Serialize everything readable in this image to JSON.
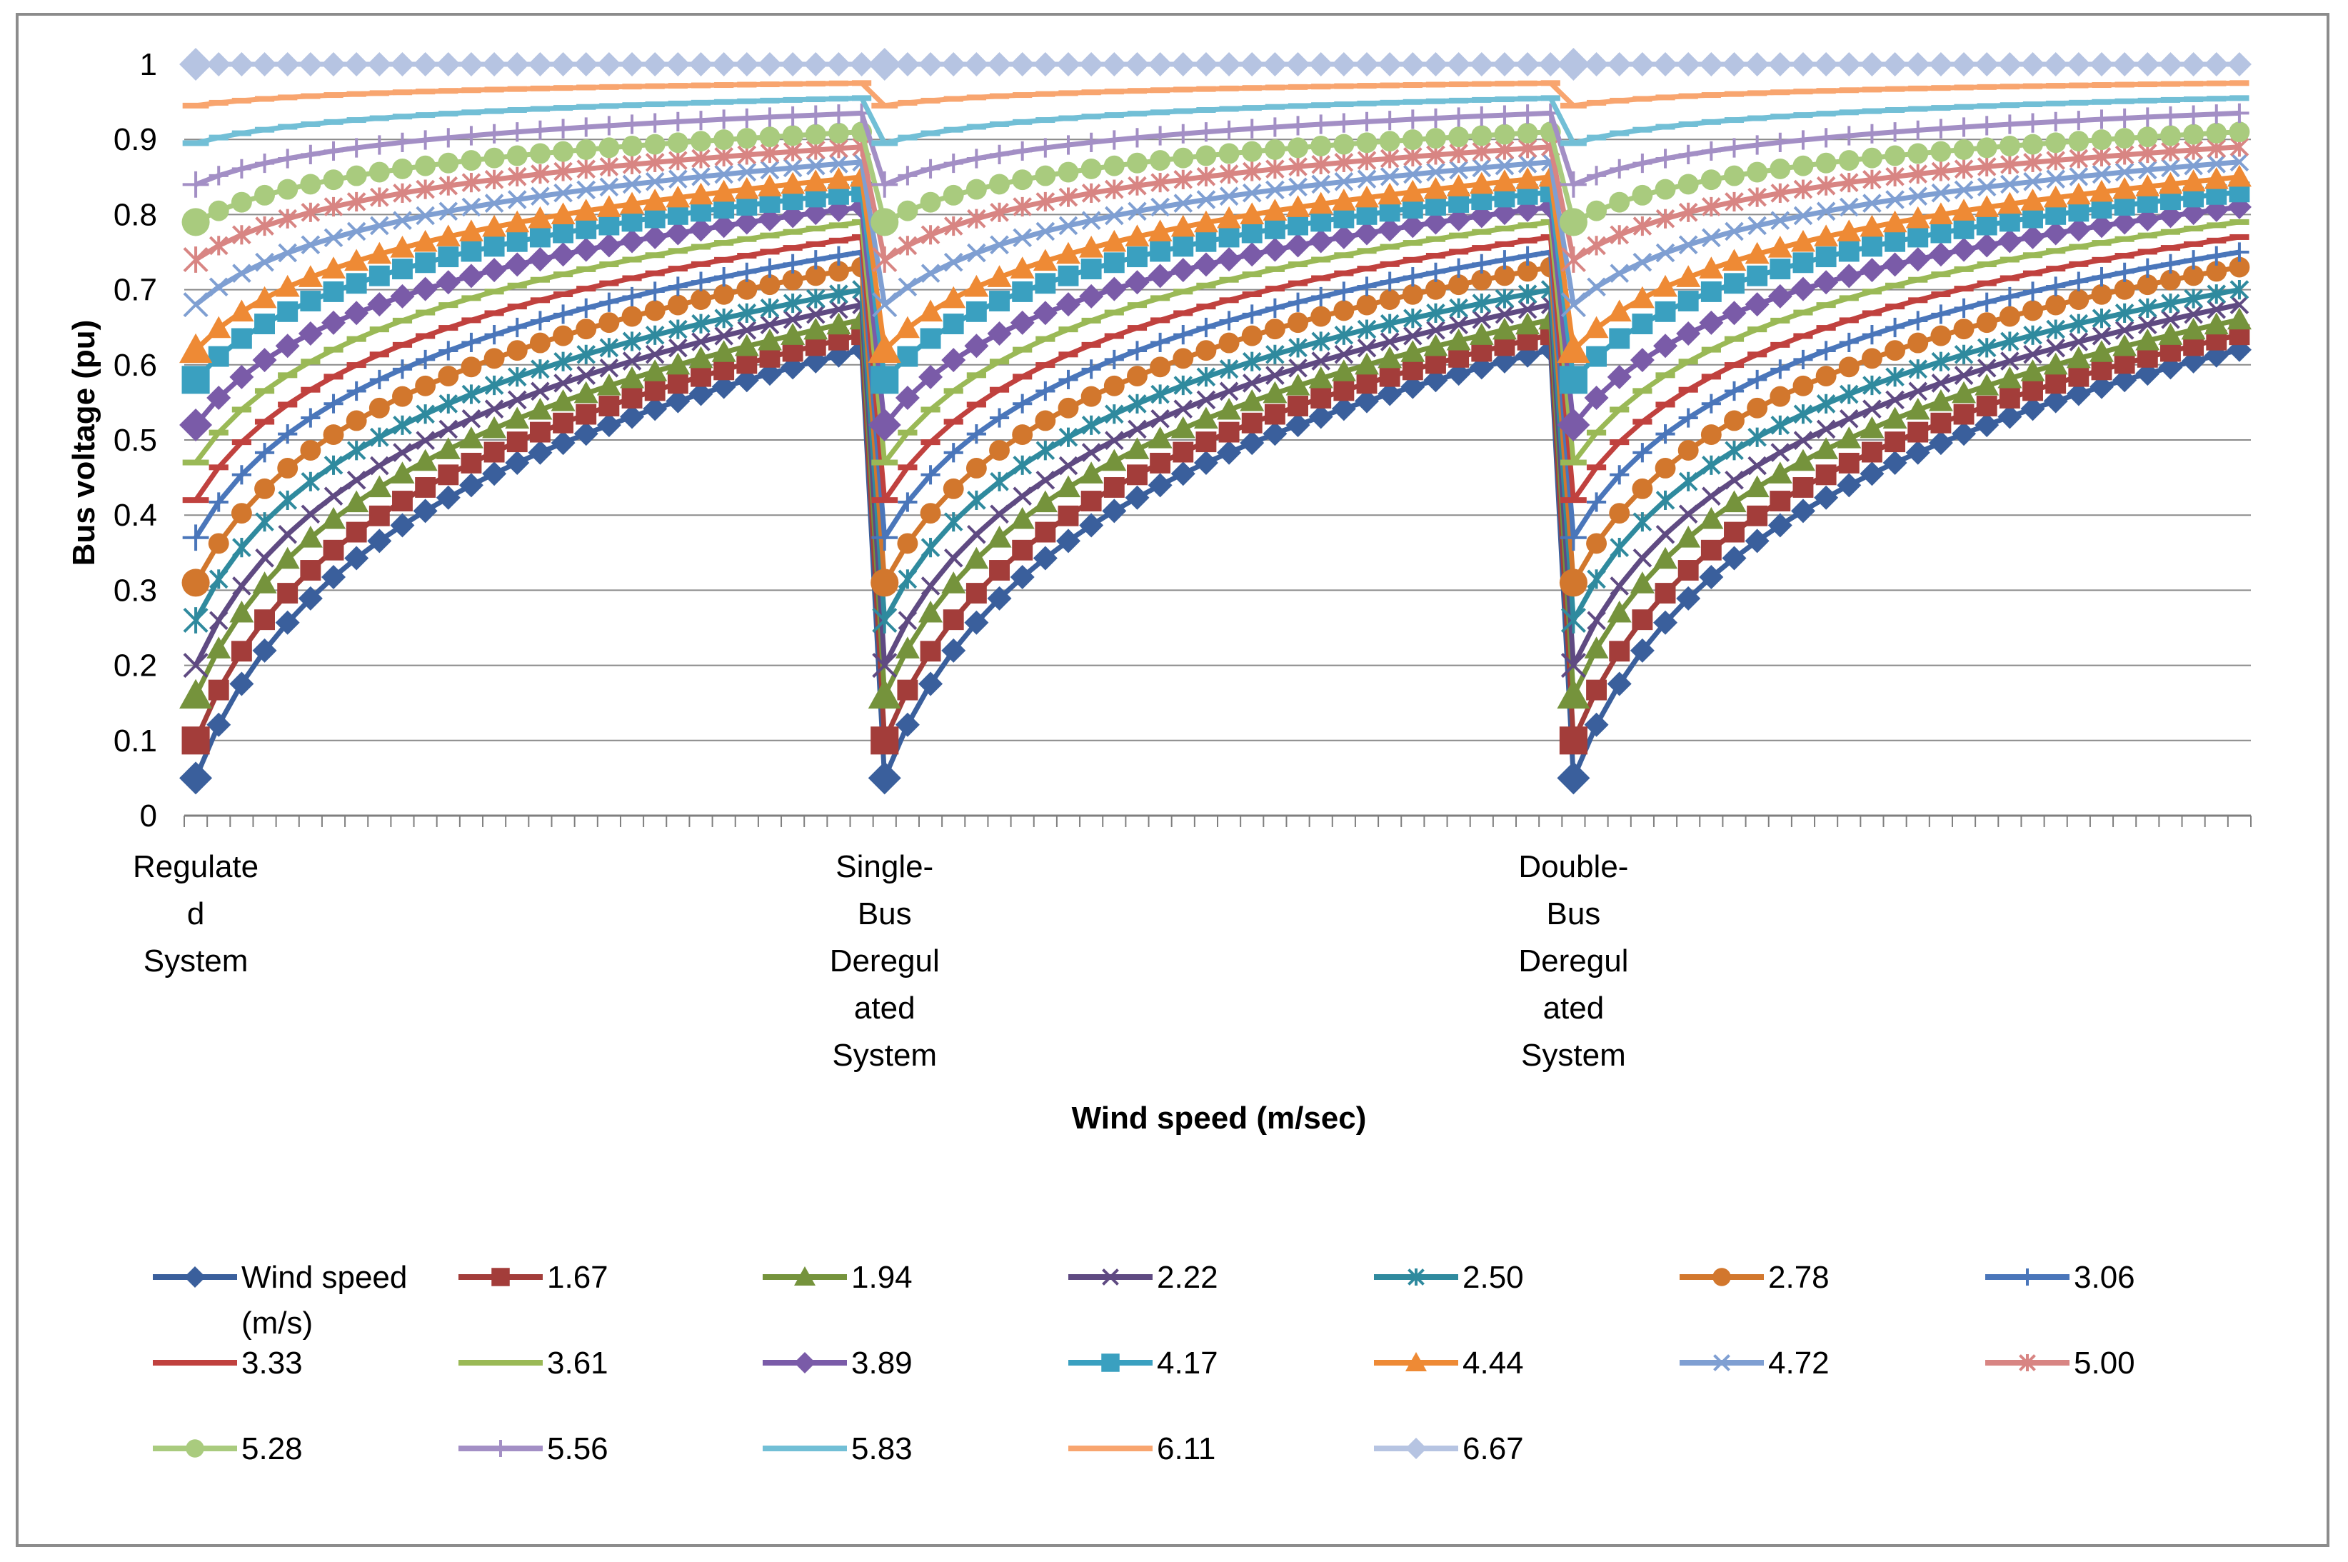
{
  "chart_data": {
    "type": "line",
    "title": "",
    "ylabel": "Bus voltage (pu)",
    "xlabel": "Wind speed (m/sec)",
    "ylim": [
      0,
      1
    ],
    "yticks": [
      "0",
      "0.1",
      "0.2",
      "0.3",
      "0.4",
      "0.5",
      "0.6",
      "0.7",
      "0.8",
      "0.9",
      "1"
    ],
    "grid": "horizontal",
    "legend_position": "bottom",
    "points_per_segment": 30,
    "categories": [
      {
        "lines": [
          "Regulate",
          "d",
          "System"
        ]
      },
      {
        "lines": [
          "Single-",
          "Bus",
          "Deregul",
          "ated",
          "System"
        ]
      },
      {
        "lines": [
          "Double-",
          "Bus",
          "Deregul",
          "ated",
          "System"
        ]
      }
    ],
    "series": [
      {
        "name": "Wind speed (m/s)",
        "label_lines": [
          "Wind speed",
          "(m/s)"
        ],
        "color": "#3a5f9c",
        "marker": "diamond",
        "start": 0.05,
        "end": 0.62
      },
      {
        "name": "1.67",
        "label_lines": [
          "1.67"
        ],
        "color": "#a33d3a",
        "marker": "square",
        "start": 0.1,
        "end": 0.64
      },
      {
        "name": "1.94",
        "label_lines": [
          "1.94"
        ],
        "color": "#75933c",
        "marker": "triangle",
        "start": 0.16,
        "end": 0.66
      },
      {
        "name": "2.22",
        "label_lines": [
          "2.22"
        ],
        "color": "#5f4a82",
        "marker": "x",
        "start": 0.2,
        "end": 0.68
      },
      {
        "name": "2.50",
        "label_lines": [
          "2.50"
        ],
        "color": "#2f8a9e",
        "marker": "asterisk",
        "start": 0.26,
        "end": 0.7
      },
      {
        "name": "2.78",
        "label_lines": [
          "2.78"
        ],
        "color": "#d2772d",
        "marker": "circle",
        "start": 0.31,
        "end": 0.73
      },
      {
        "name": "3.06",
        "label_lines": [
          "3.06"
        ],
        "color": "#4a76ba",
        "marker": "plus",
        "start": 0.37,
        "end": 0.75
      },
      {
        "name": "3.33",
        "label_lines": [
          "3.33"
        ],
        "color": "#c0413e",
        "marker": "dash",
        "start": 0.42,
        "end": 0.77
      },
      {
        "name": "3.61",
        "label_lines": [
          "3.61"
        ],
        "color": "#9ab956",
        "marker": "dash",
        "start": 0.47,
        "end": 0.79
      },
      {
        "name": "3.89",
        "label_lines": [
          "3.89"
        ],
        "color": "#7a5ba8",
        "marker": "diamond",
        "start": 0.52,
        "end": 0.81
      },
      {
        "name": "4.17",
        "label_lines": [
          "4.17"
        ],
        "color": "#3aa0c0",
        "marker": "square",
        "start": 0.58,
        "end": 0.83
      },
      {
        "name": "4.44",
        "label_lines": [
          "4.44"
        ],
        "color": "#ee8a35",
        "marker": "triangle",
        "start": 0.62,
        "end": 0.85
      },
      {
        "name": "4.72",
        "label_lines": [
          "4.72"
        ],
        "color": "#7f9fd2",
        "marker": "x",
        "start": 0.68,
        "end": 0.87
      },
      {
        "name": "5.00",
        "label_lines": [
          "5.00"
        ],
        "color": "#d88583",
        "marker": "asterisk",
        "start": 0.74,
        "end": 0.89
      },
      {
        "name": "5.28",
        "label_lines": [
          "5.28"
        ],
        "color": "#a9cb7e",
        "marker": "circle",
        "start": 0.79,
        "end": 0.91
      },
      {
        "name": "5.56",
        "label_lines": [
          "5.56"
        ],
        "color": "#a38fc5",
        "marker": "plus",
        "start": 0.84,
        "end": 0.935
      },
      {
        "name": "5.83",
        "label_lines": [
          "5.83"
        ],
        "color": "#72bfd6",
        "marker": "dash",
        "start": 0.895,
        "end": 0.955
      },
      {
        "name": "6.11",
        "label_lines": [
          "6.11"
        ],
        "color": "#f8a56f",
        "marker": "dash",
        "start": 0.945,
        "end": 0.975
      },
      {
        "name": "6.67",
        "label_lines": [
          "6.67"
        ],
        "color": "#b6c4e2",
        "marker": "diamond",
        "start": 1.0,
        "end": 1.0
      }
    ]
  }
}
